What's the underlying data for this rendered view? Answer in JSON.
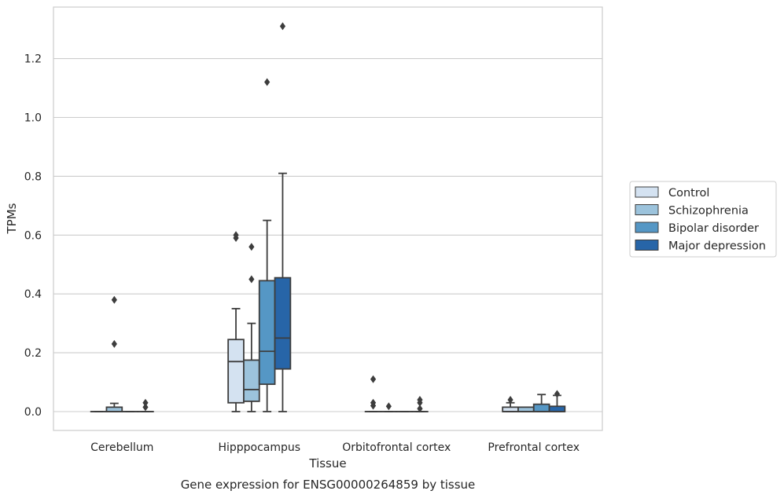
{
  "caption": "Gene expression for ENSG00000264859 by tissue",
  "chart_data": {
    "type": "box",
    "title": "",
    "xlabel": "Tissue",
    "ylabel": "TPMs",
    "ylim": [
      -0.063,
      1.38
    ],
    "yticks": [
      "0.0",
      "0.2",
      "0.4",
      "0.6",
      "0.8",
      "1.0",
      "1.2"
    ],
    "ytick_values": [
      0.0,
      0.2,
      0.4,
      0.6,
      0.8,
      1.0,
      1.2
    ],
    "grid": "horizontal",
    "legend_position": "right",
    "categories": [
      "Cerebellum",
      "Hipppocampus",
      "Orbitofrontal cortex",
      "Prefrontal cortex"
    ],
    "series": [
      {
        "name": "Control",
        "color": "#d4e2f1",
        "boxes": [
          {
            "whislo": 0,
            "q1": 0,
            "med": 0,
            "q3": 0,
            "whishi": 0,
            "fliers": []
          },
          {
            "whislo": 0,
            "q1": 0.03,
            "med": 0.17,
            "q3": 0.245,
            "whishi": 0.35,
            "fliers": [
              0.59,
              0.6
            ]
          },
          {
            "whislo": 0,
            "q1": 0,
            "med": 0,
            "q3": 0,
            "whishi": 0,
            "fliers": [
              0.02,
              0.03,
              0.11
            ]
          },
          {
            "whislo": 0,
            "q1": 0,
            "med": 0,
            "q3": 0.015,
            "whishi": 0.03,
            "fliers": [
              0.04
            ]
          }
        ]
      },
      {
        "name": "Schizophrenia",
        "color": "#9cc3dc",
        "boxes": [
          {
            "whislo": 0,
            "q1": 0,
            "med": 0,
            "q3": 0.015,
            "whishi": 0.028,
            "fliers": [
              0.23,
              0.38
            ]
          },
          {
            "whislo": 0,
            "q1": 0.035,
            "med": 0.075,
            "q3": 0.175,
            "whishi": 0.3,
            "fliers": [
              0.45,
              0.56
            ]
          },
          {
            "whislo": 0,
            "q1": 0,
            "med": 0,
            "q3": 0,
            "whishi": 0,
            "fliers": [
              0.018
            ]
          },
          {
            "whislo": 0,
            "q1": 0,
            "med": 0,
            "q3": 0.015,
            "whishi": 0.015,
            "fliers": []
          }
        ]
      },
      {
        "name": "Bipolar disorder",
        "color": "#5597c5",
        "boxes": [
          {
            "whislo": 0,
            "q1": 0,
            "med": 0,
            "q3": 0,
            "whishi": 0,
            "fliers": []
          },
          {
            "whislo": 0,
            "q1": 0.093,
            "med": 0.205,
            "q3": 0.445,
            "whishi": 0.65,
            "fliers": [
              1.12
            ]
          },
          {
            "whislo": 0,
            "q1": 0,
            "med": 0,
            "q3": 0,
            "whishi": 0,
            "fliers": []
          },
          {
            "whislo": 0,
            "q1": 0,
            "med": 0,
            "q3": 0.025,
            "whishi": 0.058,
            "fliers": []
          }
        ]
      },
      {
        "name": "Major depression",
        "color": "#2765a8",
        "boxes": [
          {
            "whislo": 0,
            "q1": 0,
            "med": 0,
            "q3": 0,
            "whishi": 0,
            "fliers": [
              0.015,
              0.03
            ]
          },
          {
            "whislo": 0,
            "q1": 0.145,
            "med": 0.25,
            "q3": 0.455,
            "whishi": 0.81,
            "fliers": [
              1.31
            ]
          },
          {
            "whislo": 0,
            "q1": 0,
            "med": 0,
            "q3": 0,
            "whishi": 0,
            "fliers": [
              0.01,
              0.03,
              0.04
            ]
          },
          {
            "whislo": 0,
            "q1": 0,
            "med": 0,
            "q3": 0.018,
            "whishi": 0.055,
            "fliers": [
              0.06
            ]
          }
        ]
      }
    ]
  }
}
